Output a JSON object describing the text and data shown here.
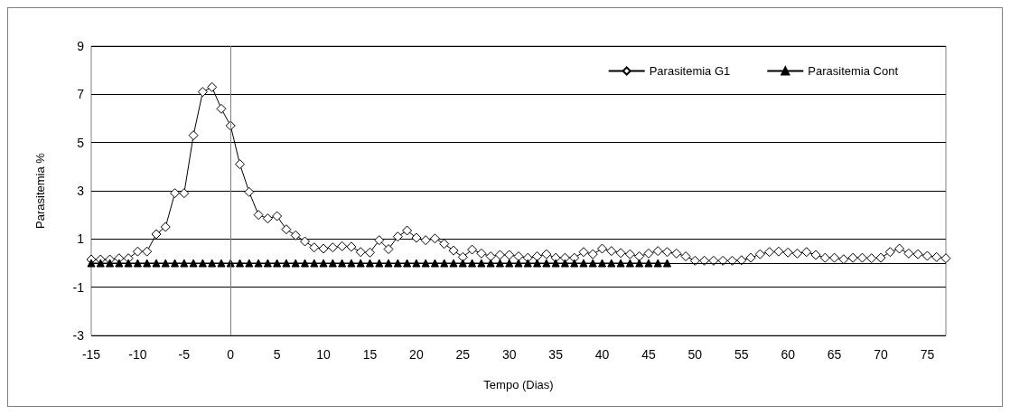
{
  "chart_data": {
    "type": "line",
    "xlabel": "Tempo (Dias)",
    "ylabel": "Parasitemia %",
    "x": [
      -15,
      -14,
      -13,
      -12,
      -11,
      -10,
      -9,
      -8,
      -7,
      -6,
      -5,
      -4,
      -3,
      -2,
      -1,
      0,
      1,
      2,
      3,
      4,
      5,
      6,
      7,
      8,
      9,
      10,
      11,
      12,
      13,
      14,
      15,
      16,
      17,
      18,
      19,
      20,
      21,
      22,
      23,
      24,
      25,
      26,
      27,
      28,
      29,
      30,
      31,
      32,
      33,
      34,
      35,
      36,
      37,
      38,
      39,
      40,
      41,
      42,
      43,
      44,
      45,
      46,
      47,
      48,
      49,
      50,
      51,
      52,
      53,
      54,
      55,
      56,
      57,
      58,
      59,
      60,
      61,
      62,
      63,
      64,
      65,
      66,
      67,
      68,
      69,
      70,
      71,
      72,
      73,
      74,
      75,
      76,
      77
    ],
    "series": [
      {
        "name": "Parasitemia G1",
        "color": "#000000",
        "marker": "diamond",
        "values": [
          0.15,
          0.15,
          0.15,
          0.2,
          0.2,
          0.48,
          0.48,
          1.2,
          1.5,
          2.9,
          2.9,
          5.3,
          7.1,
          7.3,
          6.4,
          5.7,
          4.1,
          2.95,
          2.0,
          1.85,
          1.95,
          1.4,
          1.15,
          0.9,
          0.65,
          0.6,
          0.65,
          0.7,
          0.68,
          0.46,
          0.44,
          0.95,
          0.58,
          1.1,
          1.35,
          1.05,
          0.95,
          1.02,
          0.8,
          0.52,
          0.25,
          0.56,
          0.4,
          0.28,
          0.34,
          0.34,
          0.28,
          0.22,
          0.28,
          0.37,
          0.22,
          0.22,
          0.22,
          0.46,
          0.37,
          0.6,
          0.5,
          0.42,
          0.37,
          0.28,
          0.4,
          0.5,
          0.46,
          0.4,
          0.28,
          0.1,
          0.1,
          0.1,
          0.1,
          0.1,
          0.12,
          0.22,
          0.37,
          0.46,
          0.48,
          0.44,
          0.4,
          0.46,
          0.34,
          0.22,
          0.22,
          0.16,
          0.22,
          0.22,
          0.2,
          0.22,
          0.46,
          0.6,
          0.4,
          0.37,
          0.3,
          0.25,
          0.2
        ]
      },
      {
        "name": "Parasitemia Cont",
        "color": "#000000",
        "marker": "triangle",
        "values": [
          0,
          0,
          0,
          0,
          0,
          0,
          0,
          0,
          0,
          0,
          0,
          0,
          0,
          0,
          0,
          0,
          0,
          0,
          0,
          0,
          0,
          0,
          0,
          0,
          0,
          0,
          0,
          0,
          0,
          0,
          0,
          0,
          0,
          0,
          0,
          0,
          0,
          0,
          0,
          0,
          0,
          0,
          0,
          0,
          0,
          0,
          0,
          0,
          0,
          0,
          0,
          0,
          0,
          0,
          0,
          0,
          0,
          0,
          0,
          0,
          0,
          0,
          0,
          null,
          null,
          null,
          null,
          null,
          null,
          null,
          null,
          null,
          null,
          null,
          null,
          null,
          null,
          null,
          null,
          null,
          null,
          null,
          null,
          null,
          null,
          null,
          null,
          null,
          null,
          null,
          null,
          null,
          null
        ]
      }
    ],
    "xlim": [
      -15,
      77
    ],
    "xticks": [
      -15,
      -10,
      -5,
      0,
      5,
      10,
      15,
      20,
      25,
      30,
      35,
      40,
      45,
      50,
      55,
      60,
      65,
      70,
      75
    ],
    "ylim": [
      -3,
      9
    ],
    "yticks": [
      -3,
      -1,
      1,
      3,
      5,
      7,
      9
    ],
    "ref_lines": [
      {
        "axis": "x",
        "value": 0,
        "color": "#808080"
      },
      {
        "axis": "y",
        "value": 0,
        "color": "#000000"
      }
    ],
    "grid": "y",
    "legend": "top right"
  }
}
